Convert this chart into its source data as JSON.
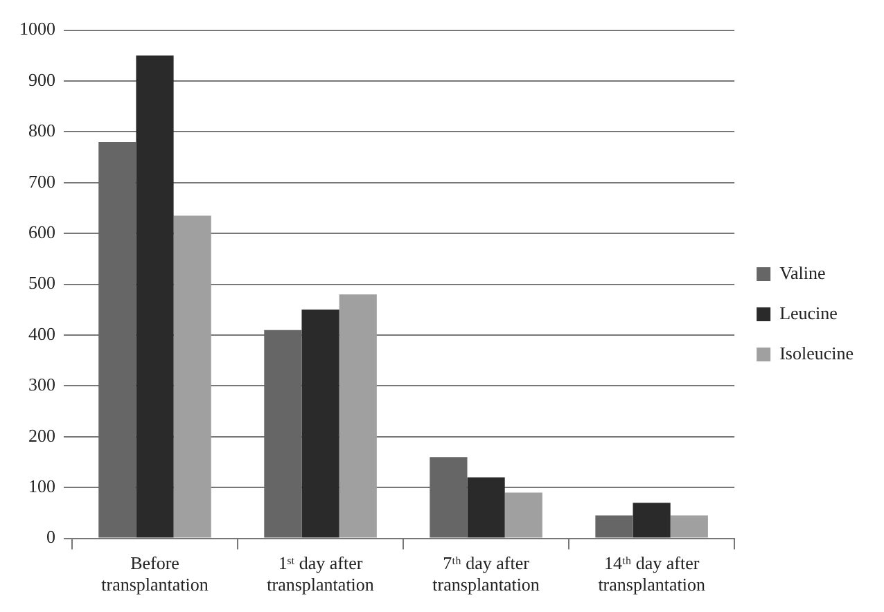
{
  "chart_data": {
    "type": "bar",
    "categories": [
      "Before transplantation",
      "1ˢᵗ day after transplantation",
      "7ᵗʰ day after transplantation",
      "14ᵗʰ day after transplantation"
    ],
    "series": [
      {
        "name": "Valine",
        "color": "#666666",
        "values": [
          780,
          410,
          160,
          45
        ]
      },
      {
        "name": "Leucine",
        "color": "#2a2a2a",
        "values": [
          950,
          450,
          120,
          70
        ]
      },
      {
        "name": "Isoleucine",
        "color": "#a0a0a0",
        "values": [
          635,
          480,
          90,
          45
        ]
      }
    ],
    "ylim": [
      0,
      1000
    ],
    "yticks": [
      0,
      100,
      200,
      300,
      400,
      500,
      600,
      700,
      800,
      900,
      1000
    ],
    "grid": "y",
    "legend": "right"
  }
}
